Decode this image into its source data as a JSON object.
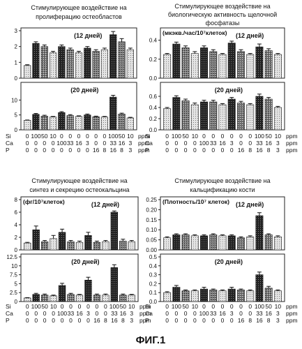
{
  "figure_label": "ФИГ.1",
  "param_rows": [
    {
      "label": "Si",
      "values": [
        "0",
        "100",
        "50",
        "10",
        "0",
        "0",
        "0",
        "0",
        "0",
        "0",
        "100",
        "50",
        "10"
      ]
    },
    {
      "label": "Ca",
      "values": [
        "0",
        "0",
        "0",
        "0",
        "100",
        "33",
        "16",
        "3",
        "0",
        "0",
        "33",
        "16",
        "3"
      ]
    },
    {
      "label": "P",
      "values": [
        "0",
        "0",
        "0",
        "0",
        "0",
        "0",
        "0",
        "0",
        "16",
        "8",
        "16",
        "8",
        "3"
      ]
    }
  ],
  "unit_label": "ppm",
  "chart_data": [
    {
      "type": "bar",
      "title": "Стимулирующее воздействие на пролиферацию остеобластов",
      "title_lines": [
        "Стимулирующее воздействие на",
        "пролиферацию остеобластов"
      ],
      "unit_text": "",
      "panels": [
        {
          "label": "(12 дней)",
          "ylim": [
            0,
            3
          ],
          "yticks": [
            "0",
            "1",
            "2",
            "3"
          ],
          "values": [
            0.8,
            2.2,
            2.0,
            1.6,
            2.0,
            1.8,
            1.6,
            1.9,
            1.7,
            1.8,
            2.75,
            2.3,
            1.8
          ],
          "errors": [
            0.05,
            0.1,
            0.1,
            0.1,
            0.1,
            0.1,
            0.1,
            0.1,
            0.1,
            0.1,
            0.2,
            0.2,
            0.1
          ]
        },
        {
          "label": "(20 дней)",
          "ylim": [
            0,
            15
          ],
          "yticks": [
            "0",
            "5",
            "10"
          ],
          "values": [
            3.2,
            5.2,
            4.6,
            4.3,
            5.8,
            4.8,
            4.5,
            5.0,
            4.4,
            4.3,
            11.0,
            5.3,
            4.0
          ],
          "errors": [
            0.1,
            0.3,
            0.3,
            0.2,
            0.3,
            0.3,
            0.2,
            0.3,
            0.2,
            0.2,
            0.6,
            0.3,
            0.2
          ]
        }
      ]
    },
    {
      "type": "bar",
      "title": "Стимулирующее воздействие на биологическую активность щелочной фосфатазы",
      "title_lines": [
        "Стимулирующее воздействие на",
        "биологическую активность щелочной",
        "фосфатазы"
      ],
      "unit_text": "(мкэкв./час/10⁷клеток)",
      "panels": [
        {
          "label": "(12 дней)",
          "ylim": [
            0,
            0.5
          ],
          "yticks": [
            "0.0",
            "0.2",
            "0.4"
          ],
          "values": [
            0.25,
            0.36,
            0.32,
            0.26,
            0.32,
            0.28,
            0.25,
            0.37,
            0.28,
            0.25,
            0.33,
            0.29,
            0.25
          ],
          "errors": [
            0.01,
            0.02,
            0.02,
            0.02,
            0.02,
            0.02,
            0.01,
            0.02,
            0.02,
            0.01,
            0.03,
            0.02,
            0.01
          ]
        },
        {
          "label": "(20 дней)",
          "ylim": [
            0,
            0.8
          ],
          "yticks": [
            "0.0",
            "0.2",
            "0.4",
            "0.6"
          ],
          "values": [
            0.38,
            0.58,
            0.52,
            0.45,
            0.5,
            0.5,
            0.45,
            0.55,
            0.48,
            0.45,
            0.6,
            0.55,
            0.4
          ],
          "errors": [
            0.02,
            0.03,
            0.03,
            0.03,
            0.03,
            0.03,
            0.02,
            0.03,
            0.03,
            0.02,
            0.04,
            0.03,
            0.02
          ]
        }
      ]
    },
    {
      "type": "bar",
      "title": "Стимулирующее воздействие на синтез и секрецию остеокальцина",
      "title_lines": [
        "Стимулирующее воздействие на",
        "синтез и секрецию остеокальцина"
      ],
      "unit_text": "(фг/10⁷клеток)",
      "panels": [
        {
          "label": "(12 дней)",
          "ylim": [
            0,
            8
          ],
          "yticks": [
            "0",
            "2",
            "4",
            "6",
            "8"
          ],
          "values": [
            1.1,
            3.2,
            1.3,
            1.8,
            2.8,
            1.3,
            1.2,
            2.3,
            1.2,
            1.3,
            6.0,
            1.4,
            1.3
          ],
          "errors": [
            0.1,
            0.6,
            0.2,
            0.5,
            0.5,
            0.2,
            0.2,
            0.5,
            0.2,
            0.2,
            0.2,
            0.3,
            0.2
          ]
        },
        {
          "label": "(20 дней)",
          "ylim": [
            0,
            12.5
          ],
          "yticks": [
            "0",
            "2.5",
            "5",
            "7.5",
            "10",
            "12.5"
          ],
          "values": [
            1.0,
            2.0,
            1.8,
            1.6,
            4.5,
            2.0,
            1.8,
            6.0,
            1.8,
            1.8,
            9.5,
            1.8,
            1.8
          ],
          "errors": [
            0.1,
            0.3,
            0.3,
            0.2,
            0.6,
            0.3,
            0.2,
            0.8,
            0.3,
            0.3,
            0.8,
            0.3,
            0.2
          ]
        }
      ]
    },
    {
      "type": "bar",
      "title": "Стимулирующее воздействие на кальцификацию кости",
      "title_lines": [
        "Стимулирующее воздействие на",
        "кальцификацию кости"
      ],
      "unit_text": "(Плотность/10⁷ клеток)",
      "panels": [
        {
          "label": "(12 дней)",
          "ylim": [
            0,
            0.25
          ],
          "yticks": [
            "0.00",
            "0.05",
            "0.10",
            "0.15",
            "0.20",
            "0.25"
          ],
          "values": [
            0.06,
            0.075,
            0.075,
            0.07,
            0.07,
            0.075,
            0.07,
            0.07,
            0.06,
            0.065,
            0.17,
            0.075,
            0.065
          ],
          "errors": [
            0.005,
            0.005,
            0.005,
            0.005,
            0.005,
            0.005,
            0.005,
            0.005,
            0.005,
            0.005,
            0.015,
            0.005,
            0.005
          ]
        },
        {
          "label": "(20 дней)",
          "ylim": [
            0,
            0.5
          ],
          "yticks": [
            "0.0",
            "0.1",
            "0.2",
            "0.3",
            "0.4",
            "0.5"
          ],
          "values": [
            0.1,
            0.16,
            0.12,
            0.12,
            0.14,
            0.13,
            0.12,
            0.14,
            0.13,
            0.12,
            0.3,
            0.15,
            0.12
          ],
          "errors": [
            0.01,
            0.02,
            0.01,
            0.01,
            0.02,
            0.01,
            0.01,
            0.02,
            0.01,
            0.01,
            0.03,
            0.02,
            0.01
          ]
        }
      ]
    }
  ]
}
